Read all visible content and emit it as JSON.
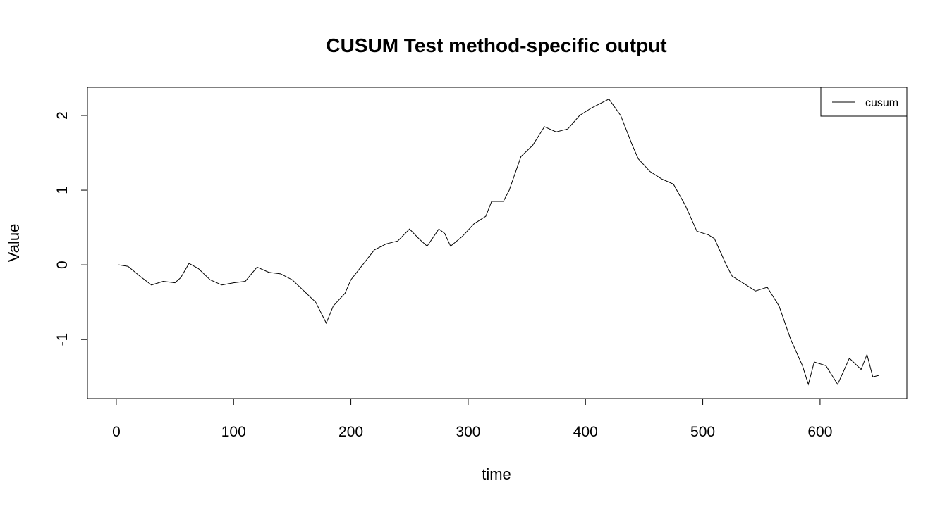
{
  "chart_data": {
    "type": "line",
    "title": "CUSUM Test method-specific output",
    "x_label": "time",
    "y_label": "Value",
    "x": [
      2,
      10,
      20,
      30,
      40,
      50,
      55,
      62,
      70,
      80,
      90,
      100,
      110,
      120,
      130,
      140,
      150,
      160,
      170,
      179,
      185,
      195,
      200,
      210,
      220,
      230,
      240,
      250,
      258,
      265,
      275,
      280,
      285,
      295,
      305,
      315,
      320,
      330,
      335,
      345,
      355,
      365,
      375,
      385,
      395,
      405,
      420,
      430,
      440,
      445,
      455,
      465,
      475,
      485,
      495,
      505,
      510,
      520,
      525,
      535,
      545,
      555,
      565,
      575,
      585,
      590,
      595,
      605,
      615,
      625,
      635,
      640,
      645,
      650
    ],
    "series": [
      {
        "name": "cusum",
        "color": "#000000",
        "values": [
          0,
          -0.02,
          -0.15,
          -0.27,
          -0.22,
          -0.24,
          -0.17,
          0.02,
          -0.05,
          -0.2,
          -0.27,
          -0.24,
          -0.22,
          -0.03,
          -0.1,
          -0.12,
          -0.2,
          -0.35,
          -0.5,
          -0.78,
          -0.55,
          -0.38,
          -0.2,
          0.0,
          0.2,
          0.28,
          0.32,
          0.48,
          0.35,
          0.25,
          0.48,
          0.42,
          0.25,
          0.38,
          0.55,
          0.65,
          0.85,
          0.85,
          1.0,
          1.45,
          1.6,
          1.85,
          1.78,
          1.82,
          2.0,
          2.1,
          2.22,
          2.0,
          1.6,
          1.42,
          1.25,
          1.15,
          1.08,
          0.8,
          0.45,
          0.4,
          0.35,
          0.0,
          -0.15,
          -0.25,
          -0.35,
          -0.3,
          -0.55,
          -1.0,
          -1.35,
          -1.6,
          -1.3,
          -1.35,
          -1.6,
          -1.25,
          -1.4,
          -1.2,
          -1.5,
          -1.48
        ]
      }
    ],
    "xlim": [
      -24.6,
      674
    ],
    "ylim": [
      -1.79,
      2.377
    ],
    "xticks": [
      0,
      100,
      200,
      300,
      400,
      500,
      600
    ],
    "yticks": [
      -1,
      0,
      1,
      2
    ],
    "legend": "top-right",
    "grid": false
  }
}
